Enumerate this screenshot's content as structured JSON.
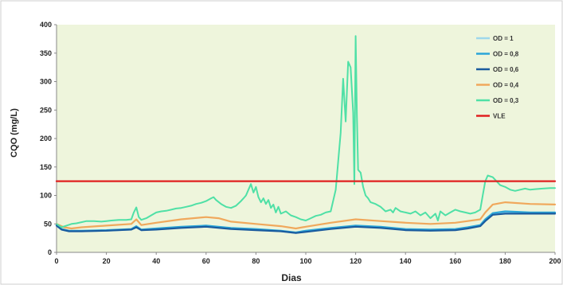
{
  "chart_data": {
    "type": "line",
    "xlabel": "Dias",
    "ylabel": "CQO (mg/L)",
    "xlim": [
      0,
      200
    ],
    "ylim": [
      0,
      400
    ],
    "x_ticks": [
      "0",
      "20",
      "40",
      "60",
      "80",
      "100",
      "120",
      "140",
      "160",
      "180",
      "200"
    ],
    "y_ticks": [
      "0",
      "50",
      "100",
      "150",
      "200",
      "250",
      "300",
      "350",
      "400"
    ],
    "grid": false,
    "legend_position": "top-right",
    "plot_background": "#eef5dc",
    "series": [
      {
        "name": "OD = 1",
        "color": "#9ed8ec",
        "x": [
          0,
          2,
          5,
          10,
          20,
          30,
          32,
          34,
          40,
          50,
          60,
          70,
          80,
          90,
          96,
          100,
          110,
          120,
          130,
          140,
          150,
          160,
          165,
          170,
          172,
          175,
          180,
          190,
          200
        ],
        "y": [
          47,
          40,
          37,
          37,
          38,
          40,
          45,
          39,
          41,
          44,
          46,
          42,
          40,
          37,
          34,
          37,
          42,
          46,
          44,
          40,
          39,
          40,
          43,
          47,
          56,
          67,
          70,
          69,
          69
        ]
      },
      {
        "name": "OD = 0,8",
        "color": "#2aa5d8",
        "x": [
          0,
          2,
          5,
          10,
          20,
          30,
          32,
          34,
          40,
          50,
          60,
          70,
          80,
          90,
          96,
          100,
          110,
          120,
          130,
          140,
          150,
          160,
          165,
          170,
          172,
          175,
          180,
          190,
          200
        ],
        "y": [
          48,
          41,
          38,
          38,
          39,
          41,
          46,
          40,
          42,
          45,
          47,
          43,
          41,
          38,
          35,
          38,
          43,
          47,
          45,
          41,
          40,
          41,
          44,
          48,
          58,
          69,
          72,
          70,
          70
        ]
      },
      {
        "name": "OD = 0,6",
        "color": "#1a5b9e",
        "x": [
          0,
          2,
          5,
          10,
          20,
          30,
          32,
          34,
          40,
          50,
          60,
          70,
          80,
          90,
          96,
          100,
          110,
          120,
          130,
          140,
          150,
          160,
          165,
          170,
          172,
          175,
          180,
          190,
          200
        ],
        "y": [
          47,
          40,
          37,
          37,
          38,
          40,
          44,
          39,
          40,
          43,
          45,
          41,
          39,
          37,
          34,
          36,
          41,
          45,
          43,
          39,
          38,
          39,
          42,
          46,
          55,
          66,
          68,
          68,
          68
        ]
      },
      {
        "name": "OD = 0,4",
        "color": "#f0a85c",
        "x": [
          0,
          3,
          6,
          10,
          20,
          30,
          32,
          34,
          40,
          50,
          60,
          65,
          70,
          80,
          90,
          96,
          100,
          110,
          120,
          130,
          140,
          150,
          160,
          165,
          170,
          172,
          175,
          180,
          190,
          200
        ],
        "y": [
          50,
          44,
          42,
          44,
          47,
          50,
          58,
          48,
          52,
          58,
          62,
          60,
          54,
          50,
          46,
          42,
          45,
          52,
          58,
          55,
          52,
          50,
          52,
          55,
          58,
          70,
          84,
          88,
          85,
          84
        ]
      },
      {
        "name": "OD = 0,3",
        "color": "#4fe0a6",
        "x": [
          0,
          2,
          4,
          6,
          8,
          10,
          12,
          15,
          18,
          20,
          22,
          25,
          28,
          30,
          31,
          32,
          33,
          34,
          36,
          38,
          40,
          42,
          44,
          46,
          48,
          50,
          52,
          54,
          56,
          58,
          60,
          62,
          63,
          64,
          66,
          68,
          70,
          72,
          74,
          75,
          76,
          77,
          78,
          79,
          80,
          81,
          82,
          83,
          84,
          85,
          86,
          87,
          88,
          89,
          90,
          92,
          94,
          96,
          98,
          100,
          102,
          104,
          106,
          108,
          110,
          112,
          113,
          114,
          115,
          116,
          117,
          118,
          119,
          119.5,
          120,
          120.5,
          121,
          122,
          123,
          124,
          125,
          126,
          128,
          130,
          132,
          134,
          135,
          136,
          138,
          140,
          142,
          144,
          146,
          148,
          150,
          152,
          153,
          154,
          156,
          158,
          160,
          162,
          164,
          166,
          168,
          170,
          171,
          172,
          173,
          175,
          178,
          180,
          182,
          184,
          186,
          188,
          190,
          192,
          195,
          198,
          200
        ],
        "y": [
          50,
          44,
          47,
          50,
          51,
          53,
          55,
          55,
          54,
          55,
          56,
          57,
          57,
          58,
          70,
          79,
          62,
          57,
          60,
          65,
          70,
          72,
          73,
          75,
          77,
          78,
          80,
          82,
          85,
          87,
          90,
          95,
          97,
          92,
          85,
          80,
          78,
          82,
          90,
          95,
          100,
          110,
          120,
          105,
          115,
          97,
          88,
          95,
          85,
          92,
          78,
          84,
          70,
          80,
          68,
          72,
          65,
          62,
          58,
          56,
          60,
          64,
          66,
          70,
          72,
          110,
          160,
          210,
          305,
          230,
          335,
          325,
          245,
          120,
          380,
          240,
          145,
          140,
          115,
          100,
          95,
          88,
          85,
          80,
          72,
          75,
          70,
          78,
          72,
          70,
          68,
          72,
          65,
          70,
          60,
          68,
          56,
          72,
          65,
          70,
          75,
          72,
          70,
          68,
          70,
          75,
          100,
          125,
          135,
          132,
          118,
          115,
          110,
          108,
          110,
          112,
          110,
          111,
          112,
          113,
          113
        ]
      },
      {
        "name": "VLE",
        "color": "#e02020",
        "x": [
          0,
          200
        ],
        "y": [
          125,
          125
        ]
      }
    ]
  }
}
